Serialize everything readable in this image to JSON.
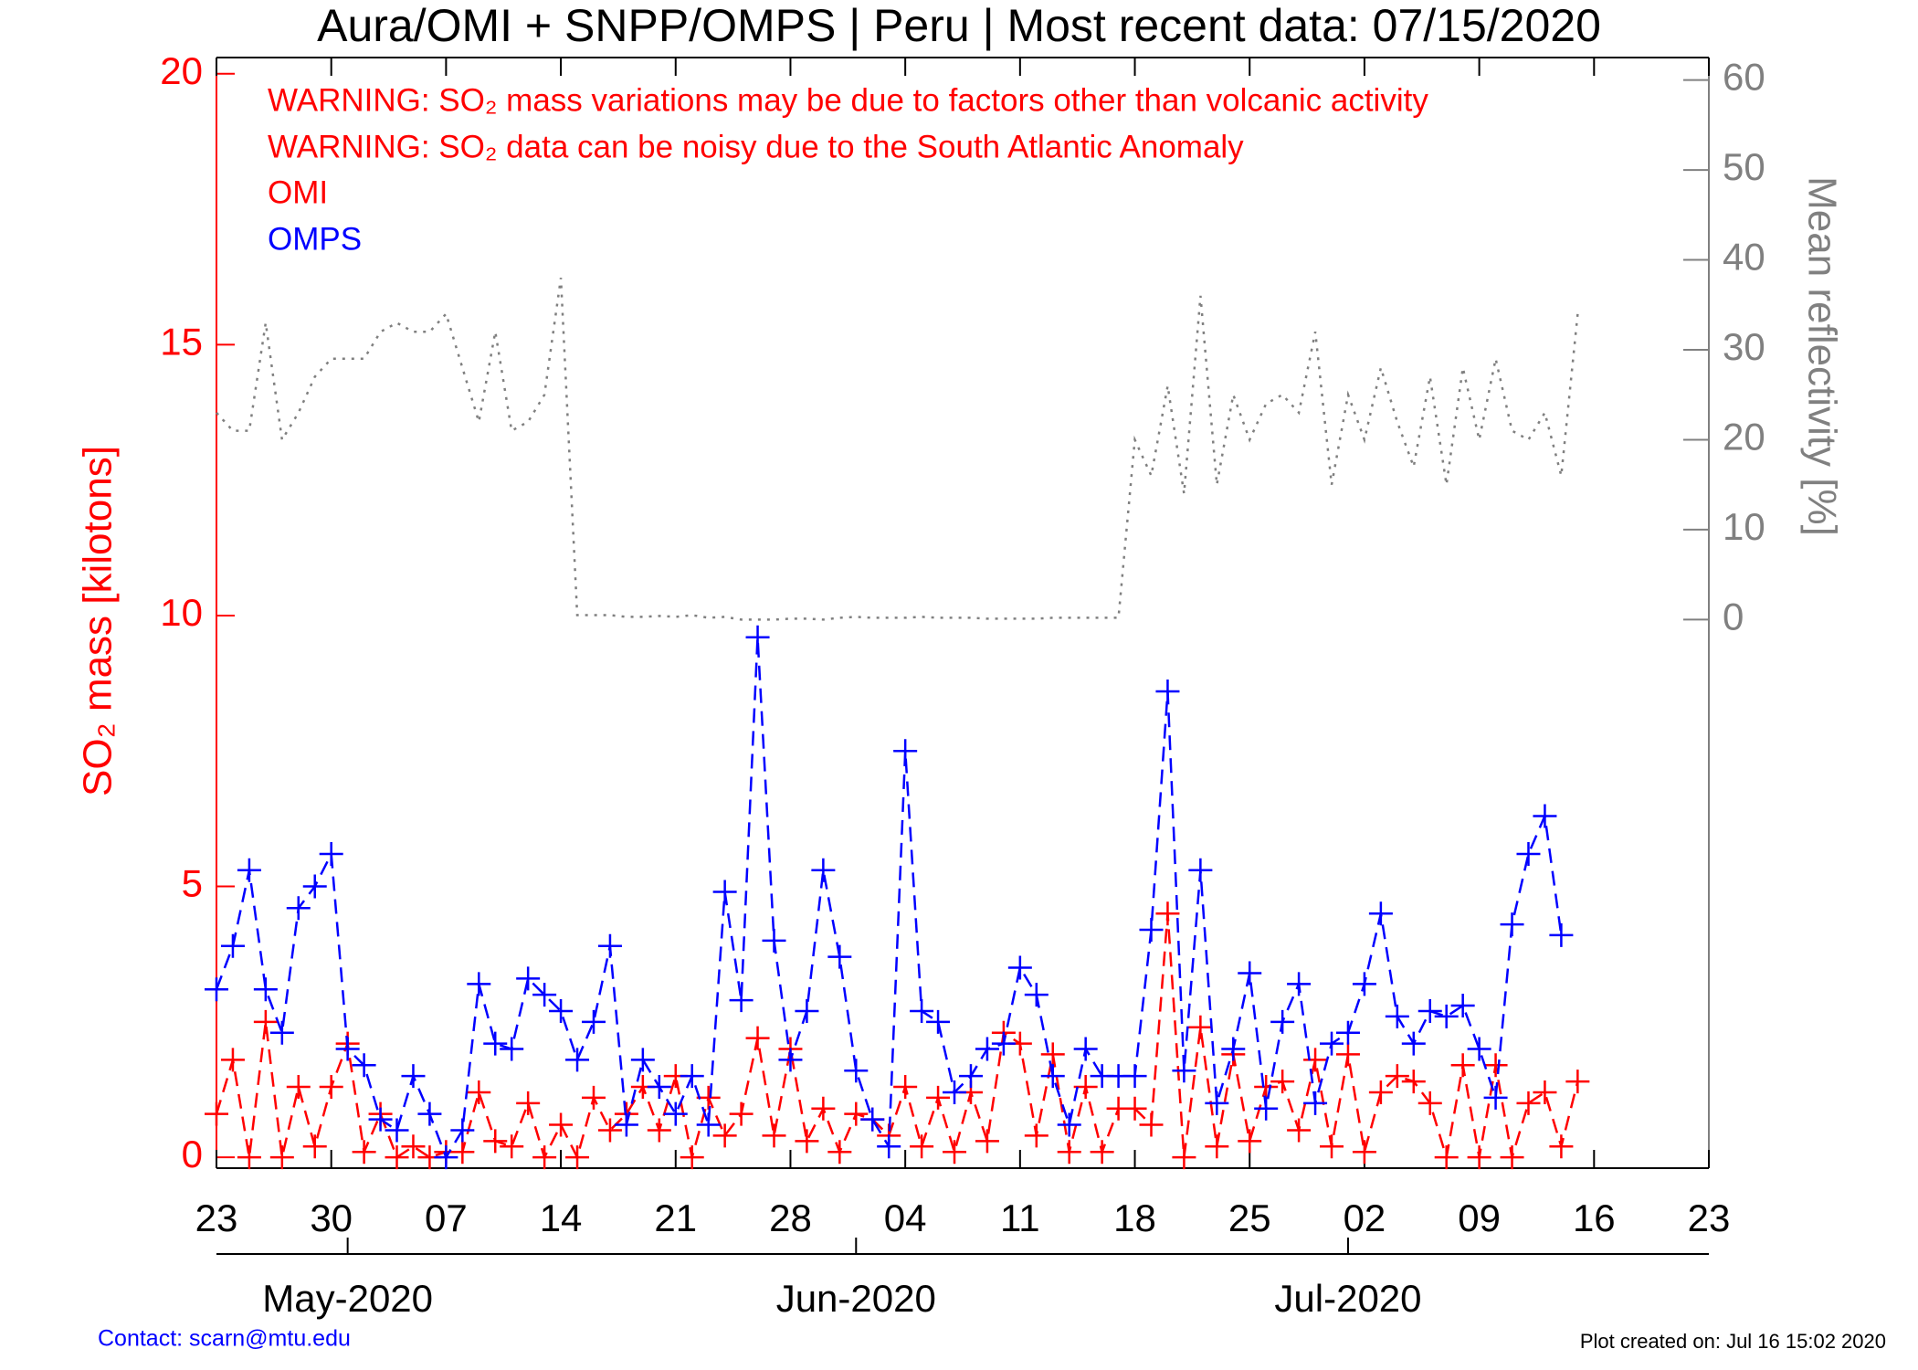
{
  "chart_data": {
    "type": "line",
    "title": "Aura/OMI + SNPP/OMPS | Peru | Most recent data: 07/15/2020",
    "annotations": [
      "WARNING: SO₂ mass variations may be due to factors other than volcanic activity",
      "WARNING: SO₂ data can be noisy due to the South Atlantic Anomaly"
    ],
    "ylabel": "SO₂ mass [kilotons]",
    "y2label": "Mean reflectivity [%]",
    "x": [
      "2020-04-23",
      "2020-04-24",
      "2020-04-25",
      "2020-04-26",
      "2020-04-27",
      "2020-04-28",
      "2020-04-29",
      "2020-04-30",
      "2020-05-01",
      "2020-05-02",
      "2020-05-03",
      "2020-05-04",
      "2020-05-05",
      "2020-05-06",
      "2020-05-07",
      "2020-05-08",
      "2020-05-09",
      "2020-05-10",
      "2020-05-11",
      "2020-05-12",
      "2020-05-13",
      "2020-05-14",
      "2020-05-15",
      "2020-05-16",
      "2020-05-17",
      "2020-05-18",
      "2020-05-19",
      "2020-05-20",
      "2020-05-21",
      "2020-05-22",
      "2020-05-23",
      "2020-05-24",
      "2020-05-25",
      "2020-05-26",
      "2020-05-27",
      "2020-05-28",
      "2020-05-29",
      "2020-05-30",
      "2020-05-31",
      "2020-06-01",
      "2020-06-02",
      "2020-06-03",
      "2020-06-04",
      "2020-06-05",
      "2020-06-06",
      "2020-06-07",
      "2020-06-08",
      "2020-06-09",
      "2020-06-10",
      "2020-06-11",
      "2020-06-12",
      "2020-06-13",
      "2020-06-14",
      "2020-06-15",
      "2020-06-16",
      "2020-06-17",
      "2020-06-18",
      "2020-06-19",
      "2020-06-20",
      "2020-06-21",
      "2020-06-22",
      "2020-06-23",
      "2020-06-24",
      "2020-06-25",
      "2020-06-26",
      "2020-06-27",
      "2020-06-28",
      "2020-06-29",
      "2020-06-30",
      "2020-07-01",
      "2020-07-02",
      "2020-07-03",
      "2020-07-04",
      "2020-07-05",
      "2020-07-06",
      "2020-07-07",
      "2020-07-08",
      "2020-07-09",
      "2020-07-10",
      "2020-07-11",
      "2020-07-12",
      "2020-07-13",
      "2020-07-14",
      "2020-07-15"
    ],
    "xlim": [
      "2020-04-23",
      "2020-07-23"
    ],
    "xticks": [
      {
        "value": "2020-04-23",
        "label": "23"
      },
      {
        "value": "2020-04-30",
        "label": "30"
      },
      {
        "value": "2020-05-07",
        "label": "07"
      },
      {
        "value": "2020-05-14",
        "label": "14"
      },
      {
        "value": "2020-05-21",
        "label": "21"
      },
      {
        "value": "2020-05-28",
        "label": "28"
      },
      {
        "value": "2020-06-04",
        "label": "04"
      },
      {
        "value": "2020-06-11",
        "label": "11"
      },
      {
        "value": "2020-06-18",
        "label": "18"
      },
      {
        "value": "2020-06-25",
        "label": "25"
      },
      {
        "value": "2020-07-02",
        "label": "02"
      },
      {
        "value": "2020-07-09",
        "label": "09"
      },
      {
        "value": "2020-07-16",
        "label": "16"
      },
      {
        "value": "2020-07-23",
        "label": "23"
      }
    ],
    "month_ticks": [
      {
        "value": "2020-05-01",
        "label": "May-2020"
      },
      {
        "value": "2020-06-01",
        "label": "Jun-2020"
      },
      {
        "value": "2020-07-01",
        "label": "Jul-2020"
      }
    ],
    "ylim": [
      -0.2,
      20.3
    ],
    "yticks": [
      0,
      5,
      10,
      15,
      20
    ],
    "y2lim": [
      -61,
      62.5
    ],
    "y2ticks": [
      0,
      10,
      20,
      30,
      40,
      50,
      60
    ],
    "series": [
      {
        "name": "OMI",
        "color": "#ff0000",
        "marker": "+",
        "linestyle": "dashed",
        "values": [
          0.8,
          1.8,
          0.0,
          2.5,
          0.0,
          1.3,
          0.2,
          1.3,
          2.1,
          0.1,
          0.8,
          0.0,
          0.2,
          0.0,
          0.1,
          0.1,
          1.2,
          0.3,
          0.2,
          1.0,
          0.0,
          0.6,
          0.0,
          1.1,
          0.5,
          0.8,
          1.3,
          0.5,
          1.5,
          0.0,
          1.1,
          0.4,
          0.8,
          2.2,
          0.4,
          2.0,
          0.3,
          0.9,
          0.1,
          0.8,
          0.7,
          0.4,
          1.3,
          0.2,
          1.1,
          0.1,
          1.2,
          0.3,
          2.3,
          2.1,
          0.4,
          1.9,
          0.1,
          1.3,
          0.1,
          0.9,
          0.9,
          0.6,
          4.5,
          0.0,
          2.4,
          0.2,
          1.9,
          0.3,
          1.3,
          1.4,
          0.5,
          1.8,
          0.2,
          1.9,
          0.1,
          1.2,
          1.5,
          1.4,
          1.0,
          0.0,
          1.7,
          0.0,
          1.7,
          0.0,
          1.0,
          1.2,
          0.2,
          1.4
        ]
      },
      {
        "name": "OMPS",
        "color": "#0000ff",
        "marker": "+",
        "linestyle": "dashed",
        "values": [
          3.1,
          3.9,
          5.3,
          3.1,
          2.3,
          4.6,
          5.0,
          5.6,
          2.0,
          1.7,
          0.7,
          0.5,
          1.5,
          0.8,
          0.0,
          0.5,
          3.2,
          2.1,
          2.0,
          3.3,
          3.0,
          2.7,
          1.8,
          2.5,
          3.9,
          0.6,
          1.8,
          1.3,
          0.8,
          1.5,
          0.6,
          4.9,
          2.9,
          9.6,
          4.0,
          1.8,
          2.7,
          5.3,
          3.7,
          1.6,
          0.7,
          0.2,
          7.5,
          2.7,
          2.5,
          1.2,
          1.5,
          2.0,
          2.1,
          3.5,
          3.0,
          1.5,
          0.6,
          2.0,
          1.5,
          1.5,
          1.5,
          4.2,
          8.6,
          1.6,
          5.3,
          1.0,
          2.0,
          3.4,
          0.9,
          2.5,
          3.2,
          1.0,
          2.1,
          2.3,
          3.2,
          4.5,
          2.6,
          2.1,
          2.7,
          2.6,
          2.8,
          2.0,
          1.1,
          4.3,
          5.6,
          6.3,
          4.1,
          null
        ]
      },
      {
        "color": "#808080",
        "axis": "y2",
        "linestyle": "dotted",
        "values": [
          23,
          21,
          21,
          33,
          20,
          23,
          27,
          29,
          29,
          29,
          32,
          33,
          32,
          32,
          34,
          28,
          22,
          32,
          21,
          22,
          25,
          38,
          0.5,
          0.5,
          0.5,
          0.3,
          0.3,
          0.4,
          0.3,
          0.5,
          0.2,
          0.3,
          0,
          0,
          0,
          0.1,
          0.1,
          0,
          0.2,
          0.3,
          0.2,
          0.2,
          0.2,
          0.3,
          0.2,
          0.2,
          0.2,
          0.1,
          0.1,
          0.1,
          0.1,
          0.2,
          0.2,
          0.2,
          0.2,
          0.2,
          20,
          16,
          26,
          14,
          36,
          15,
          25,
          20,
          24,
          25,
          23,
          32,
          15,
          25,
          20,
          28,
          22,
          17,
          27,
          15,
          28,
          20,
          29,
          21,
          20,
          23,
          16,
          34
        ]
      }
    ]
  },
  "footer": {
    "contact": "Contact: scarn@mtu.edu",
    "created": "Plot created on: Jul 16 15:02 2020"
  }
}
